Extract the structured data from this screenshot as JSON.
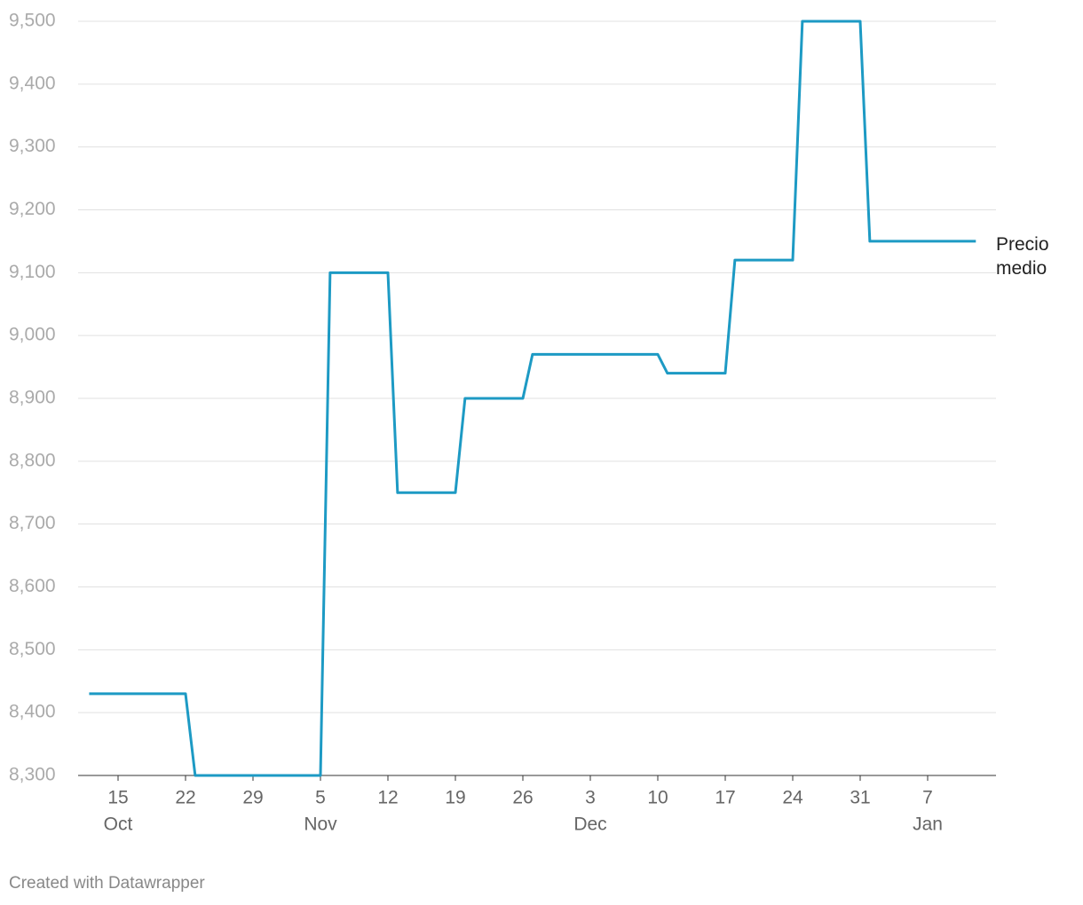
{
  "chart_data": {
    "type": "line",
    "x": [
      "10-12",
      "10-22",
      "10-23",
      "11-05",
      "11-06",
      "11-12",
      "11-13",
      "11-19",
      "11-20",
      "11-26",
      "11-27",
      "12-10",
      "12-11",
      "12-17",
      "12-18",
      "12-24",
      "12-25",
      "12-31",
      "01-01",
      "01-12"
    ],
    "series": [
      {
        "name": "Precio medio",
        "color": "#1d9ac4",
        "values": [
          8430,
          8430,
          8300,
          8300,
          9100,
          9100,
          8750,
          8750,
          8900,
          8900,
          8970,
          8970,
          8940,
          8940,
          9120,
          9120,
          9500,
          9500,
          9150,
          9150
        ]
      }
    ],
    "ylim": [
      8300,
      9500
    ],
    "yticks": [
      {
        "value": 8300,
        "label": "8,300"
      },
      {
        "value": 8400,
        "label": "8,400"
      },
      {
        "value": 8500,
        "label": "8,500"
      },
      {
        "value": 8600,
        "label": "8,600"
      },
      {
        "value": 8700,
        "label": "8,700"
      },
      {
        "value": 8800,
        "label": "8,800"
      },
      {
        "value": 8900,
        "label": "8,900"
      },
      {
        "value": 9000,
        "label": "9,000"
      },
      {
        "value": 9100,
        "label": "9,100"
      },
      {
        "value": 9200,
        "label": "9,200"
      },
      {
        "value": 9300,
        "label": "9,300"
      },
      {
        "value": 9400,
        "label": "9,400"
      },
      {
        "value": 9500,
        "label": "9,500"
      }
    ],
    "xticks": [
      {
        "value": "10-15",
        "label": "15"
      },
      {
        "value": "10-22",
        "label": "22"
      },
      {
        "value": "10-29",
        "label": "29"
      },
      {
        "value": "11-05",
        "label": "5"
      },
      {
        "value": "11-12",
        "label": "12"
      },
      {
        "value": "11-19",
        "label": "19"
      },
      {
        "value": "11-26",
        "label": "26"
      },
      {
        "value": "12-03",
        "label": "3"
      },
      {
        "value": "12-10",
        "label": "10"
      },
      {
        "value": "12-17",
        "label": "17"
      },
      {
        "value": "12-24",
        "label": "24"
      },
      {
        "value": "12-31",
        "label": "31"
      },
      {
        "value": "01-07",
        "label": "7"
      }
    ],
    "xmonth_labels": [
      {
        "value": "10-15",
        "label": "Oct"
      },
      {
        "value": "11-05",
        "label": "Nov"
      },
      {
        "value": "12-03",
        "label": "Dec"
      },
      {
        "value": "01-07",
        "label": "Jan"
      }
    ],
    "grid": true,
    "credit": "Created with Datawrapper"
  }
}
